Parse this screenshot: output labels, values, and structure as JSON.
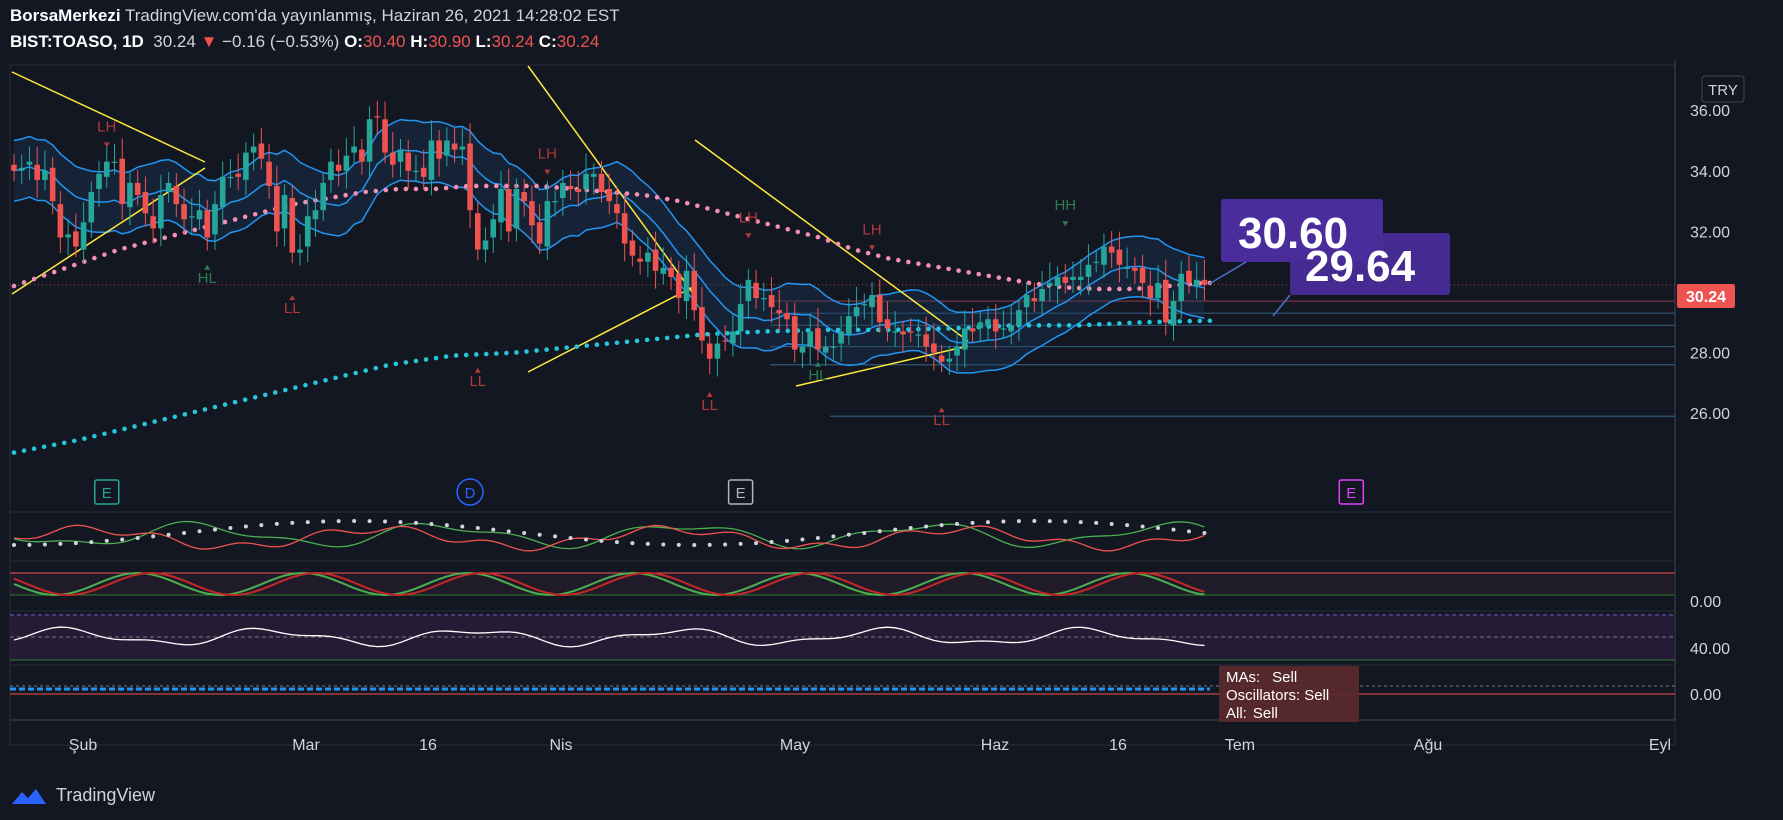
{
  "header": {
    "author": "BorsaMerkezi",
    "published": "TradingView.com'da yayınlanmış, Haziran 26, 2021 14:28:02 EST",
    "symbol": "BIST:TOASO, 1D",
    "last": "30.24",
    "change": "−0.16 (−0.53%)",
    "o_label": "O:",
    "o": "30.40",
    "h_label": "H:",
    "h": "30.90",
    "l_label": "L:",
    "l": "30.24",
    "c_label": "C:",
    "c": "30.24"
  },
  "currency": "TRY",
  "last_price_tag": "30.24",
  "callouts": [
    "30.60",
    "29.64"
  ],
  "pattern_labels": [
    {
      "t": "LH",
      "i": 12,
      "p": 35.3
    },
    {
      "t": "HL",
      "i": 25,
      "p": 30.7
    },
    {
      "t": "LL",
      "i": 36,
      "p": 29.7
    },
    {
      "t": "LL",
      "i": 60,
      "p": 27.3
    },
    {
      "t": "LH",
      "i": 69,
      "p": 34.4
    },
    {
      "t": "LL",
      "i": 90,
      "p": 26.5
    },
    {
      "t": "LH",
      "i": 95,
      "p": 32.3
    },
    {
      "t": "HL",
      "i": 104,
      "p": 27.5
    },
    {
      "t": "LH",
      "i": 111,
      "p": 31.9
    },
    {
      "t": "LL",
      "i": 120,
      "p": 26.0
    },
    {
      "t": "HH",
      "i": 136,
      "p": 32.7
    }
  ],
  "event_markers": [
    {
      "t": "E",
      "i": 12,
      "color": "#26a69a"
    },
    {
      "t": "D",
      "i": 59,
      "color": "#2962ff"
    },
    {
      "t": "E",
      "i": 94,
      "color": "#b2b5be"
    },
    {
      "t": "E",
      "i": 173,
      "color": "#e040fb"
    }
  ],
  "summary": {
    "mas_label": "MAs:",
    "mas": "Sell",
    "osc_label": "Oscillators:",
    "osc": "Sell",
    "all_label": "All:",
    "all": "Sell"
  },
  "watermark": "TradingView",
  "colors": {
    "bg": "#131722",
    "up": "#26a69a",
    "down": "#ef5350",
    "band": "#2196f3",
    "trend": "#ffeb3b",
    "accent": "#4a2c9b"
  },
  "chart_data": [
    {
      "type": "candlestick",
      "title": "BIST:TOASO, 1D",
      "x_tick_labels": [
        "Şub",
        "Mar",
        "16",
        "Nis",
        "May",
        "Haz",
        "16",
        "Tem",
        "Ağu",
        "Eyl"
      ],
      "y_tick_labels": [
        "26.00",
        "28.00",
        "30.00",
        "32.00",
        "34.00",
        "36.00"
      ],
      "y_range": [
        24.4,
        37.2
      ],
      "grid": false,
      "series": [
        {
          "name": "Close",
          "close": [
            34.0,
            34.1,
            34.3,
            33.7,
            34.0,
            33.0,
            31.8,
            31.9,
            31.5,
            32.3,
            33.3,
            33.9,
            34.3,
            34.3,
            32.9,
            33.6,
            33.2,
            32.6,
            32.1,
            33.2,
            33.6,
            32.9,
            32.4,
            32.5,
            32.7,
            31.8,
            32.9,
            33.8,
            33.8,
            33.8,
            34.6,
            34.8,
            34.4,
            33.5,
            32.0,
            33.2,
            31.3,
            31.4,
            32.5,
            32.7,
            33.6,
            34.3,
            34.0,
            34.5,
            34.8,
            34.3,
            35.7,
            35.8,
            34.6,
            34.2,
            34.7,
            34.0,
            34.0,
            33.8,
            35.0,
            34.4,
            35.0,
            34.7,
            34.8,
            32.7,
            31.4,
            31.7,
            32.4,
            33.4,
            32.0,
            33.4,
            33.0,
            32.2,
            31.6,
            33.0,
            33.0,
            33.6,
            33.4,
            33.3,
            33.9,
            33.9,
            33.3,
            33.0,
            32.6,
            31.6,
            31.2,
            31.0,
            31.3,
            30.7,
            30.8,
            30.5,
            29.8,
            30.7,
            29.4,
            28.4,
            27.8,
            28.3,
            28.4,
            28.7,
            29.6,
            30.4,
            29.8,
            29.8,
            29.5,
            29.3,
            29.1,
            28.1,
            28.2,
            28.7,
            28.1,
            28.2,
            28.2,
            28.7,
            29.2,
            29.5,
            29.6,
            29.9,
            29.0,
            28.8,
            28.7,
            28.6,
            28.7,
            28.6,
            28.2,
            28.0,
            27.7,
            27.8,
            28.2,
            28.8,
            28.7,
            29.0,
            29.1,
            28.7,
            28.8,
            28.9,
            29.4,
            29.9,
            29.7,
            30.1,
            30.3,
            30.5,
            30.3,
            30.5,
            30.5,
            30.9,
            31.0,
            31.5,
            31.3,
            30.9,
            30.8,
            30.7,
            30.3,
            29.8,
            30.3,
            29.0,
            29.7,
            30.6,
            30.3,
            30.4,
            30.24
          ]
        },
        {
          "name": "Moving average (cyan dotted)",
          "values": [
            24.7,
            25.1,
            25.6,
            26.1,
            26.6,
            27.1,
            27.6,
            27.9,
            28.0,
            28.2,
            28.4,
            28.6,
            28.7,
            28.75,
            28.75,
            28.8,
            28.9,
            28.9,
            29.0,
            29.05
          ]
        },
        {
          "name": "Moving average (pink dotted)",
          "values": [
            30.2,
            30.6,
            31.0,
            31.4,
            31.7,
            32.0,
            32.3,
            32.6,
            32.9,
            33.1,
            33.3,
            33.4,
            33.4,
            33.5,
            33.5,
            33.5,
            33.4,
            33.3,
            33.2,
            33.0,
            32.7,
            32.4,
            32.1,
            31.8,
            31.4,
            31.1,
            30.9,
            30.7,
            30.5,
            30.3,
            30.15,
            30.1,
            30.1,
            30.2,
            30.3
          ]
        }
      ],
      "horizontal_levels": [
        30.24,
        29.7,
        29.3,
        28.9,
        28.2,
        27.6,
        25.9
      ]
    },
    {
      "type": "line",
      "y_tick_labels": [
        "0.00"
      ]
    },
    {
      "type": "line",
      "y_tick_labels": [
        "40.00"
      ]
    },
    {
      "type": "bar",
      "y_tick_labels": [
        "0.00"
      ]
    }
  ]
}
